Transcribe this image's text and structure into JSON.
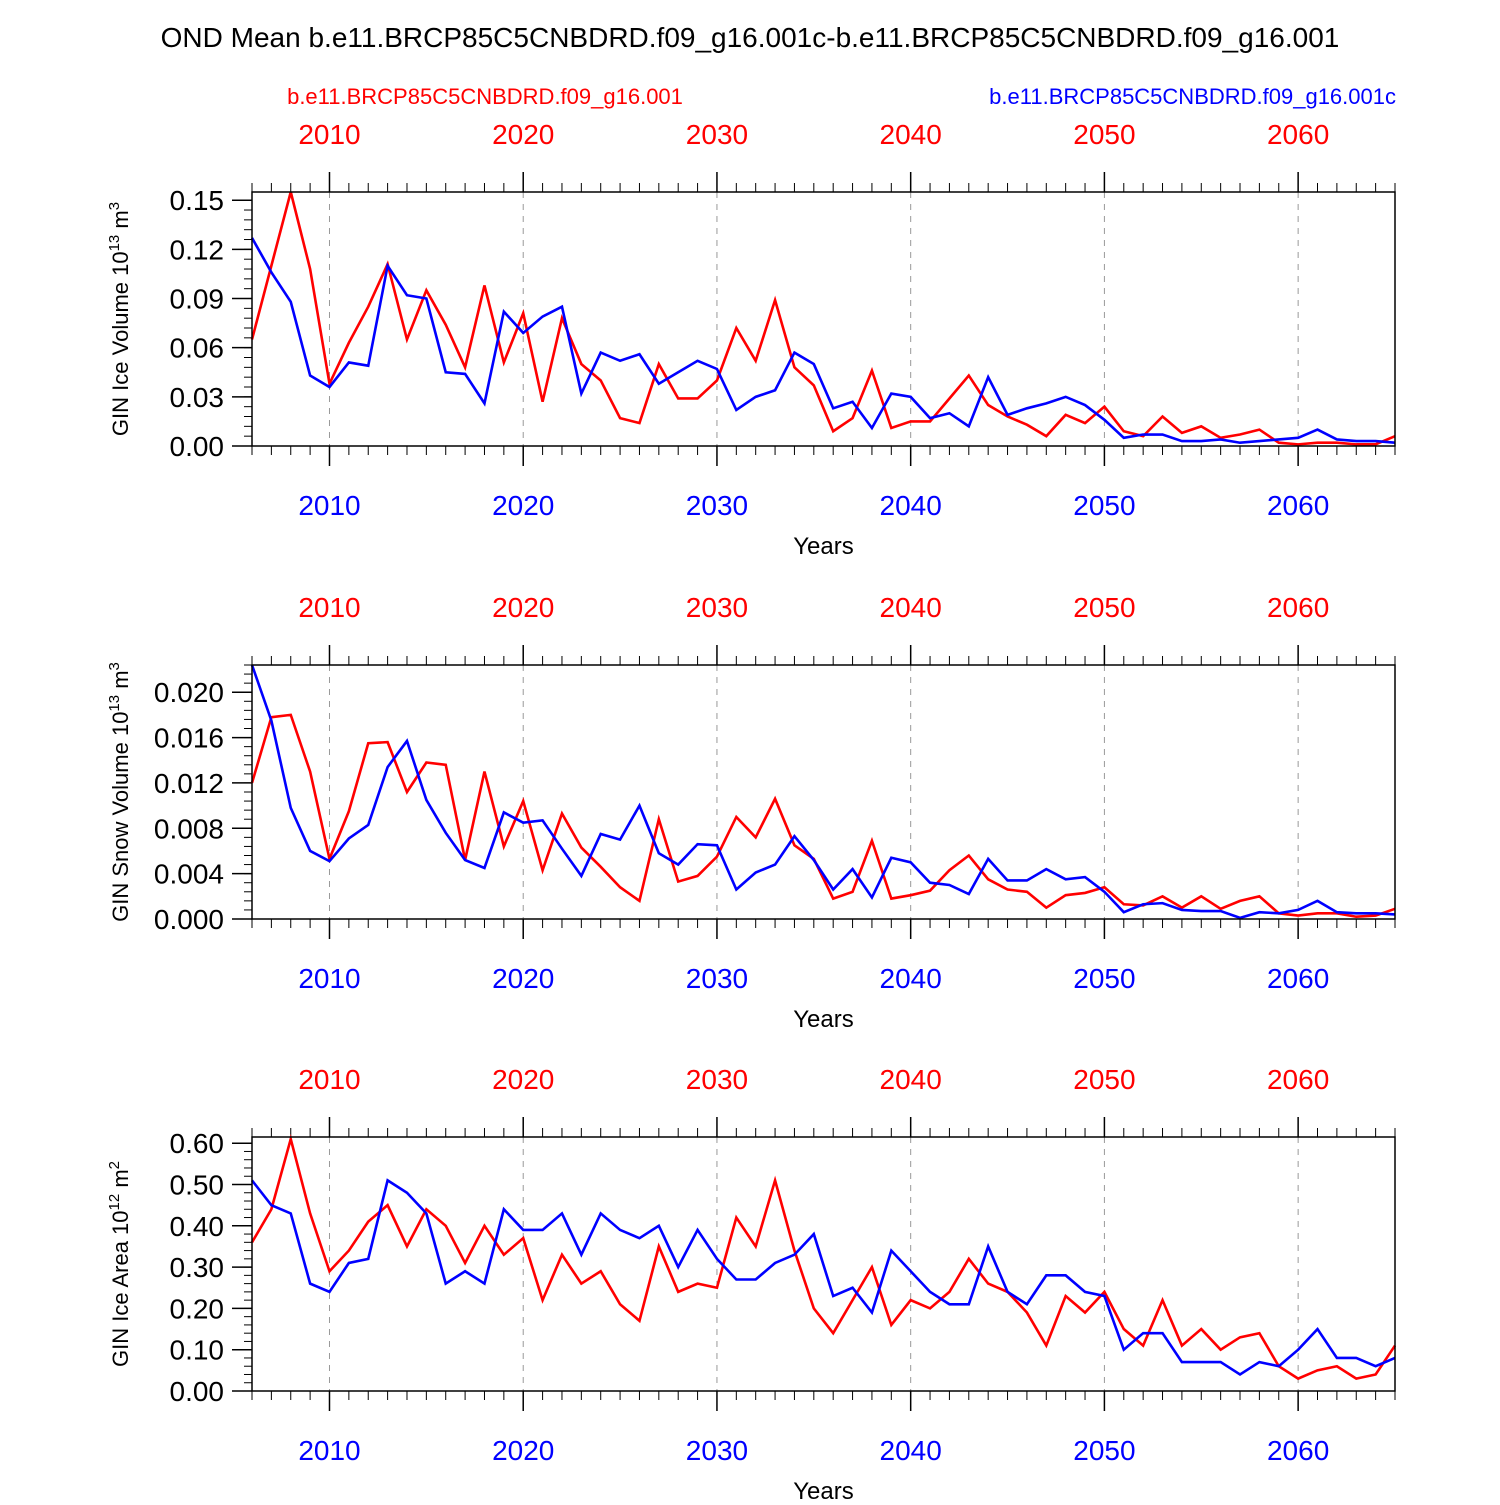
{
  "title": "OND Mean b.e11.BRCP85C5CNBDRD.f09_g16.001c-b.e11.BRCP85C5CNBDRD.f09_g16.001",
  "legend": {
    "red_label": "b.e11.BRCP85C5CNBDRD.f09_g16.001",
    "blue_label": "b.e11.BRCP85C5CNBDRD.f09_g16.001c"
  },
  "colors": {
    "red": "#ff0000",
    "blue": "#0000ff",
    "axis": "#000000",
    "grid": "#999999"
  },
  "chart_data": [
    {
      "type": "line",
      "id": "ice-volume",
      "ylabel": "GIN Ice Volume 10",
      "ylabel_exp": "13",
      "ylabel_unit": " m",
      "ylabel_unit_exp": "3",
      "xlabel": "Years",
      "xlim": [
        2006,
        2065
      ],
      "ylim": [
        0,
        0.155
      ],
      "yticks": [
        0,
        0.03,
        0.06,
        0.09,
        0.12,
        0.15
      ],
      "ytick_labels": [
        "0.00",
        "0.03",
        "0.06",
        "0.09",
        "0.12",
        "0.15"
      ],
      "yminor": 0.006,
      "xticks": [
        2010,
        2020,
        2030,
        2040,
        2050,
        2060
      ],
      "xtick_labels": [
        "2010",
        "2020",
        "2030",
        "2040",
        "2050",
        "2060"
      ],
      "x_start": 2006,
      "series": [
        {
          "name": "b.e11.BRCP85C5CNBDRD.f09_g16.001",
          "color": "#ff0000",
          "values": [
            0.065,
            0.11,
            0.155,
            0.108,
            0.038,
            0.063,
            0.085,
            0.111,
            0.065,
            0.095,
            0.074,
            0.048,
            0.098,
            0.051,
            0.081,
            0.027,
            0.078,
            0.05,
            0.04,
            0.017,
            0.014,
            0.05,
            0.029,
            0.029,
            0.04,
            0.072,
            0.052,
            0.089,
            0.048,
            0.037,
            0.009,
            0.017,
            0.046,
            0.011,
            0.015,
            0.015,
            0.029,
            0.043,
            0.025,
            0.018,
            0.013,
            0.006,
            0.019,
            0.014,
            0.024,
            0.009,
            0.006,
            0.018,
            0.008,
            0.012,
            0.005,
            0.007,
            0.01,
            0.002,
            0.001,
            0.002,
            0.002,
            0.001,
            0.001,
            0.006
          ]
        },
        {
          "name": "b.e11.BRCP85C5CNBDRD.f09_g16.001c",
          "color": "#0000ff",
          "values": [
            0.127,
            0.106,
            0.088,
            0.043,
            0.036,
            0.051,
            0.049,
            0.11,
            0.092,
            0.09,
            0.045,
            0.044,
            0.026,
            0.082,
            0.069,
            0.079,
            0.085,
            0.032,
            0.057,
            0.052,
            0.056,
            0.038,
            0.045,
            0.052,
            0.047,
            0.022,
            0.03,
            0.034,
            0.057,
            0.05,
            0.023,
            0.027,
            0.011,
            0.032,
            0.03,
            0.017,
            0.02,
            0.012,
            0.042,
            0.019,
            0.023,
            0.026,
            0.03,
            0.025,
            0.016,
            0.005,
            0.007,
            0.007,
            0.003,
            0.003,
            0.004,
            0.002,
            0.003,
            0.004,
            0.005,
            0.01,
            0.004,
            0.003,
            0.003,
            0.002
          ]
        }
      ]
    },
    {
      "type": "line",
      "id": "snow-volume",
      "ylabel": "GIN Snow Volume 10",
      "ylabel_exp": "13",
      "ylabel_unit": " m",
      "ylabel_unit_exp": "3",
      "xlabel": "Years",
      "xlim": [
        2006,
        2065
      ],
      "ylim": [
        0,
        0.0224
      ],
      "yticks": [
        0,
        0.004,
        0.008,
        0.012,
        0.016,
        0.02
      ],
      "ytick_labels": [
        "0.000",
        "0.004",
        "0.008",
        "0.012",
        "0.016",
        "0.020"
      ],
      "yminor": 0.0008,
      "xticks": [
        2010,
        2020,
        2030,
        2040,
        2050,
        2060
      ],
      "xtick_labels": [
        "2010",
        "2020",
        "2030",
        "2040",
        "2050",
        "2060"
      ],
      "x_start": 2006,
      "series": [
        {
          "name": "b.e11.BRCP85C5CNBDRD.f09_g16.001",
          "color": "#ff0000",
          "values": [
            0.012,
            0.0178,
            0.018,
            0.013,
            0.0053,
            0.0095,
            0.0155,
            0.0156,
            0.0112,
            0.0138,
            0.0136,
            0.0052,
            0.013,
            0.0064,
            0.0104,
            0.0043,
            0.0093,
            0.0063,
            0.0046,
            0.0028,
            0.0016,
            0.0088,
            0.0033,
            0.0038,
            0.0055,
            0.009,
            0.0072,
            0.0106,
            0.0065,
            0.0053,
            0.0018,
            0.0024,
            0.0069,
            0.0018,
            0.0021,
            0.0025,
            0.0043,
            0.0056,
            0.0035,
            0.0026,
            0.0024,
            0.001,
            0.0021,
            0.0023,
            0.0028,
            0.0013,
            0.0012,
            0.002,
            0.001,
            0.002,
            0.0009,
            0.0016,
            0.002,
            0.0005,
            0.0003,
            0.0005,
            0.0005,
            0.0002,
            0.0003,
            0.0009
          ]
        },
        {
          "name": "b.e11.BRCP85C5CNBDRD.f09_g16.001c",
          "color": "#0000ff",
          "values": [
            0.0224,
            0.0175,
            0.0098,
            0.006,
            0.0051,
            0.0071,
            0.0083,
            0.0134,
            0.0157,
            0.0105,
            0.0076,
            0.0052,
            0.0045,
            0.0094,
            0.0085,
            0.0087,
            0.0062,
            0.0038,
            0.0075,
            0.007,
            0.01,
            0.0058,
            0.0048,
            0.0066,
            0.0065,
            0.0026,
            0.0041,
            0.0048,
            0.0073,
            0.0052,
            0.0026,
            0.0044,
            0.0019,
            0.0054,
            0.005,
            0.0032,
            0.003,
            0.0022,
            0.0053,
            0.0034,
            0.0034,
            0.0044,
            0.0035,
            0.0037,
            0.0024,
            0.0006,
            0.0013,
            0.0014,
            0.0008,
            0.0007,
            0.0007,
            0.0001,
            0.0006,
            0.0005,
            0.0008,
            0.0016,
            0.0006,
            0.0005,
            0.0005,
            0.0004
          ]
        }
      ]
    },
    {
      "type": "line",
      "id": "ice-area",
      "ylabel": "GIN Ice Area 10",
      "ylabel_exp": "12",
      "ylabel_unit": " m",
      "ylabel_unit_exp": "2",
      "xlabel": "Years",
      "xlim": [
        2006,
        2065
      ],
      "ylim": [
        0,
        0.615
      ],
      "yticks": [
        0,
        0.1,
        0.2,
        0.3,
        0.4,
        0.5,
        0.6
      ],
      "ytick_labels": [
        "0.00",
        "0.10",
        "0.20",
        "0.30",
        "0.40",
        "0.50",
        "0.60"
      ],
      "yminor": 0.02,
      "xticks": [
        2010,
        2020,
        2030,
        2040,
        2050,
        2060
      ],
      "xtick_labels": [
        "2010",
        "2020",
        "2030",
        "2040",
        "2050",
        "2060"
      ],
      "x_start": 2006,
      "series": [
        {
          "name": "b.e11.BRCP85C5CNBDRD.f09_g16.001",
          "color": "#ff0000",
          "values": [
            0.36,
            0.44,
            0.61,
            0.43,
            0.29,
            0.34,
            0.41,
            0.45,
            0.35,
            0.44,
            0.4,
            0.31,
            0.4,
            0.33,
            0.37,
            0.22,
            0.33,
            0.26,
            0.29,
            0.21,
            0.17,
            0.35,
            0.24,
            0.26,
            0.25,
            0.42,
            0.35,
            0.51,
            0.34,
            0.2,
            0.14,
            0.22,
            0.3,
            0.16,
            0.22,
            0.2,
            0.24,
            0.32,
            0.26,
            0.24,
            0.19,
            0.11,
            0.23,
            0.19,
            0.24,
            0.15,
            0.11,
            0.22,
            0.11,
            0.15,
            0.1,
            0.13,
            0.14,
            0.06,
            0.03,
            0.05,
            0.06,
            0.03,
            0.04,
            0.11
          ]
        },
        {
          "name": "b.e11.BRCP85C5CNBDRD.f09_g16.001c",
          "color": "#0000ff",
          "values": [
            0.51,
            0.45,
            0.43,
            0.26,
            0.24,
            0.31,
            0.32,
            0.51,
            0.48,
            0.43,
            0.26,
            0.29,
            0.26,
            0.44,
            0.39,
            0.39,
            0.43,
            0.33,
            0.43,
            0.39,
            0.37,
            0.4,
            0.3,
            0.39,
            0.32,
            0.27,
            0.27,
            0.31,
            0.33,
            0.38,
            0.23,
            0.25,
            0.19,
            0.34,
            0.29,
            0.24,
            0.21,
            0.21,
            0.35,
            0.24,
            0.21,
            0.28,
            0.28,
            0.24,
            0.23,
            0.1,
            0.14,
            0.14,
            0.07,
            0.07,
            0.07,
            0.04,
            0.07,
            0.06,
            0.1,
            0.15,
            0.08,
            0.08,
            0.06,
            0.08
          ]
        }
      ]
    }
  ]
}
